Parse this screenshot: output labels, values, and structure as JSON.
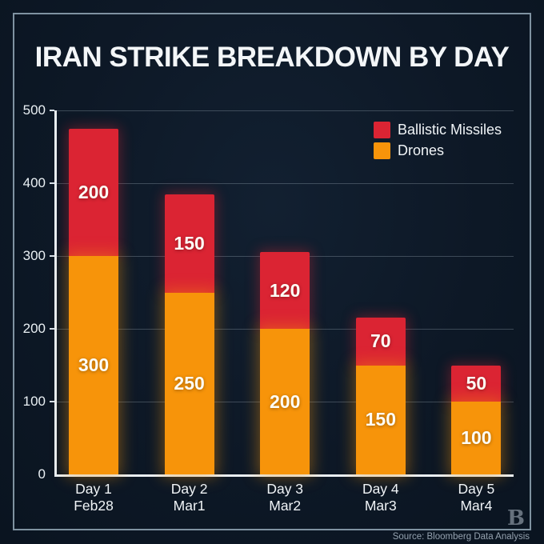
{
  "page": {
    "title": "IRAN STRIKE BREAKDOWN BY DAY",
    "source": "Source: Bloomberg Data Analysis",
    "logo_letter": "B",
    "colors": {
      "background": "#0D1826",
      "frame_border": "#9CB1C0",
      "text": "#F3F6F8",
      "muted_text": "#94A1AE"
    }
  },
  "chart_data": {
    "type": "bar",
    "stacked": true,
    "title": "IRAN STRIKE BREAKDOWN BY DAY",
    "categories": [
      {
        "day": "Day 1",
        "date": "Feb28"
      },
      {
        "day": "Day 2",
        "date": "Mar1"
      },
      {
        "day": "Day 3",
        "date": "Mar2"
      },
      {
        "day": "Day 4",
        "date": "Mar3"
      },
      {
        "day": "Day 5",
        "date": "Mar4"
      }
    ],
    "series": [
      {
        "name": "Ballistic Missiles",
        "color": "#DB2433",
        "values": [
          200,
          150,
          120,
          70,
          50
        ]
      },
      {
        "name": "Drones",
        "color": "#F7940A",
        "values": [
          300,
          250,
          200,
          150,
          100
        ]
      }
    ],
    "totals_labeled": [
      500,
      400,
      320,
      220,
      150
    ],
    "ylim": [
      0,
      500
    ],
    "yticks": [
      0,
      100,
      200,
      300,
      400,
      500
    ],
    "grid": true,
    "legend_position": "top-right",
    "drawn_bar_tops": [
      475,
      385,
      305,
      215,
      150
    ]
  }
}
